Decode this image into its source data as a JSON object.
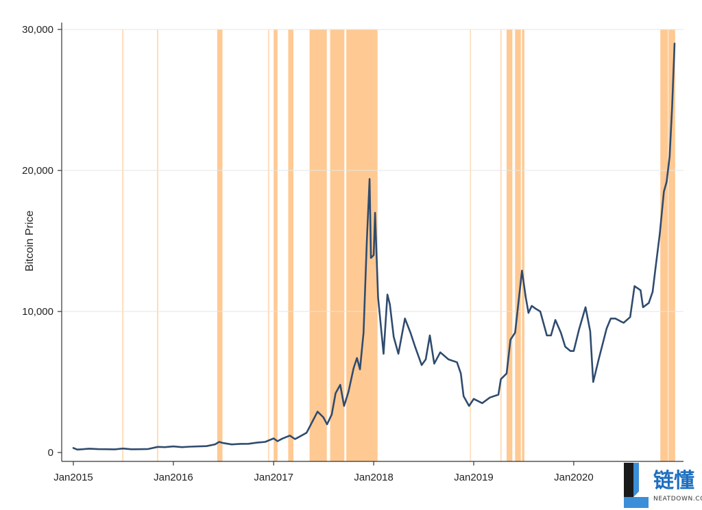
{
  "chart_data": {
    "type": "line",
    "ylabel": "Bitcoin Price",
    "xlabel": "",
    "title": "",
    "xlim": [
      "2015-01-01",
      "2021-01-10"
    ],
    "ylim": [
      0,
      30000
    ],
    "y_ticks": [
      0,
      10000,
      20000,
      30000
    ],
    "y_tick_labels": [
      "0",
      "10,000",
      "20,000",
      "30,000"
    ],
    "x_ticks": [
      "2015-01-01",
      "2016-01-01",
      "2017-01-01",
      "2018-01-01",
      "2019-01-01",
      "2020-01-01"
    ],
    "x_tick_labels": [
      "Jan2015",
      "Jan2016",
      "Jan2017",
      "Jan2018",
      "Jan2019",
      "Jan2020"
    ],
    "grid": "horizontal",
    "series": [
      {
        "color": "#2f4b6e",
        "points": [
          [
            "2015-01-01",
            320
          ],
          [
            "2015-01-15",
            210
          ],
          [
            "2015-02-01",
            230
          ],
          [
            "2015-03-01",
            270
          ],
          [
            "2015-04-01",
            240
          ],
          [
            "2015-05-01",
            235
          ],
          [
            "2015-06-01",
            225
          ],
          [
            "2015-07-01",
            280
          ],
          [
            "2015-08-01",
            230
          ],
          [
            "2015-09-01",
            235
          ],
          [
            "2015-10-01",
            250
          ],
          [
            "2015-11-05",
            400
          ],
          [
            "2015-12-01",
            380
          ],
          [
            "2016-01-01",
            430
          ],
          [
            "2016-02-01",
            380
          ],
          [
            "2016-03-01",
            415
          ],
          [
            "2016-04-01",
            430
          ],
          [
            "2016-05-01",
            450
          ],
          [
            "2016-06-01",
            580
          ],
          [
            "2016-06-16",
            750
          ],
          [
            "2016-07-01",
            670
          ],
          [
            "2016-08-01",
            575
          ],
          [
            "2016-09-01",
            610
          ],
          [
            "2016-10-01",
            615
          ],
          [
            "2016-11-01",
            700
          ],
          [
            "2016-12-01",
            750
          ],
          [
            "2017-01-01",
            1000
          ],
          [
            "2017-01-15",
            800
          ],
          [
            "2017-02-01",
            980
          ],
          [
            "2017-03-01",
            1200
          ],
          [
            "2017-03-20",
            950
          ],
          [
            "2017-04-01",
            1080
          ],
          [
            "2017-05-01",
            1400
          ],
          [
            "2017-05-25",
            2300
          ],
          [
            "2017-06-10",
            2900
          ],
          [
            "2017-07-01",
            2500
          ],
          [
            "2017-07-15",
            2000
          ],
          [
            "2017-08-01",
            2700
          ],
          [
            "2017-08-15",
            4200
          ],
          [
            "2017-09-01",
            4800
          ],
          [
            "2017-09-15",
            3300
          ],
          [
            "2017-10-01",
            4300
          ],
          [
            "2017-10-20",
            6000
          ],
          [
            "2017-11-01",
            6700
          ],
          [
            "2017-11-12",
            5900
          ],
          [
            "2017-11-25",
            8500
          ],
          [
            "2017-12-07",
            15000
          ],
          [
            "2017-12-17",
            19400
          ],
          [
            "2017-12-22",
            13800
          ],
          [
            "2018-01-01",
            14000
          ],
          [
            "2018-01-06",
            17000
          ],
          [
            "2018-01-17",
            11000
          ],
          [
            "2018-02-06",
            7000
          ],
          [
            "2018-02-20",
            11200
          ],
          [
            "2018-03-01",
            10500
          ],
          [
            "2018-03-15",
            8200
          ],
          [
            "2018-04-01",
            7000
          ],
          [
            "2018-04-25",
            9500
          ],
          [
            "2018-05-15",
            8500
          ],
          [
            "2018-06-01",
            7500
          ],
          [
            "2018-06-25",
            6200
          ],
          [
            "2018-07-10",
            6600
          ],
          [
            "2018-07-25",
            8300
          ],
          [
            "2018-08-10",
            6300
          ],
          [
            "2018-09-01",
            7100
          ],
          [
            "2018-10-01",
            6600
          ],
          [
            "2018-11-01",
            6400
          ],
          [
            "2018-11-15",
            5600
          ],
          [
            "2018-11-25",
            4000
          ],
          [
            "2018-12-15",
            3300
          ],
          [
            "2019-01-01",
            3800
          ],
          [
            "2019-02-01",
            3500
          ],
          [
            "2019-03-01",
            3900
          ],
          [
            "2019-04-01",
            4100
          ],
          [
            "2019-04-10",
            5200
          ],
          [
            "2019-05-01",
            5600
          ],
          [
            "2019-05-15",
            8000
          ],
          [
            "2019-06-01",
            8500
          ],
          [
            "2019-06-26",
            12900
          ],
          [
            "2019-07-10",
            11000
          ],
          [
            "2019-07-20",
            9900
          ],
          [
            "2019-08-01",
            10400
          ],
          [
            "2019-08-15",
            10200
          ],
          [
            "2019-09-01",
            10000
          ],
          [
            "2019-09-25",
            8300
          ],
          [
            "2019-10-10",
            8300
          ],
          [
            "2019-10-26",
            9400
          ],
          [
            "2019-11-15",
            8500
          ],
          [
            "2019-12-01",
            7500
          ],
          [
            "2019-12-20",
            7200
          ],
          [
            "2020-01-01",
            7200
          ],
          [
            "2020-01-20",
            8700
          ],
          [
            "2020-02-13",
            10300
          ],
          [
            "2020-03-01",
            8600
          ],
          [
            "2020-03-12",
            5000
          ],
          [
            "2020-04-01",
            6600
          ],
          [
            "2020-04-30",
            8800
          ],
          [
            "2020-05-15",
            9500
          ],
          [
            "2020-06-01",
            9500
          ],
          [
            "2020-06-20",
            9300
          ],
          [
            "2020-07-01",
            9200
          ],
          [
            "2020-07-25",
            9600
          ],
          [
            "2020-08-10",
            11800
          ],
          [
            "2020-09-01",
            11500
          ],
          [
            "2020-09-10",
            10300
          ],
          [
            "2020-10-01",
            10600
          ],
          [
            "2020-10-15",
            11400
          ],
          [
            "2020-10-25",
            13000
          ],
          [
            "2020-11-10",
            15500
          ],
          [
            "2020-11-25",
            18500
          ],
          [
            "2020-12-05",
            19200
          ],
          [
            "2020-12-16",
            21000
          ],
          [
            "2020-12-25",
            24500
          ],
          [
            "2021-01-03",
            29000
          ]
        ]
      }
    ],
    "highlight_color": "#ffbf80",
    "highlight_periods": [
      [
        "2015-06-28",
        "2015-07-03"
      ],
      [
        "2015-11-02",
        "2015-11-07"
      ],
      [
        "2016-06-09",
        "2016-06-28"
      ],
      [
        "2016-12-11",
        "2016-12-16"
      ],
      [
        "2017-01-01",
        "2017-01-15"
      ],
      [
        "2017-02-23",
        "2017-03-14"
      ],
      [
        "2017-05-12",
        "2017-07-14"
      ],
      [
        "2017-07-26",
        "2017-09-16"
      ],
      [
        "2017-09-23",
        "2018-01-15"
      ],
      [
        "2018-12-18",
        "2018-12-22"
      ],
      [
        "2019-04-08",
        "2019-04-13"
      ],
      [
        "2019-05-01",
        "2019-05-22"
      ],
      [
        "2019-06-01",
        "2019-06-22"
      ],
      [
        "2019-06-26",
        "2019-07-05"
      ],
      [
        "2020-11-12",
        "2020-12-10"
      ],
      [
        "2020-12-12",
        "2021-01-05"
      ]
    ]
  },
  "watermark": {
    "title": "链懂",
    "subtitle": "NEATDOWN.COM",
    "logo_colors": [
      "#1a1a1a",
      "#3d8ed8"
    ]
  }
}
